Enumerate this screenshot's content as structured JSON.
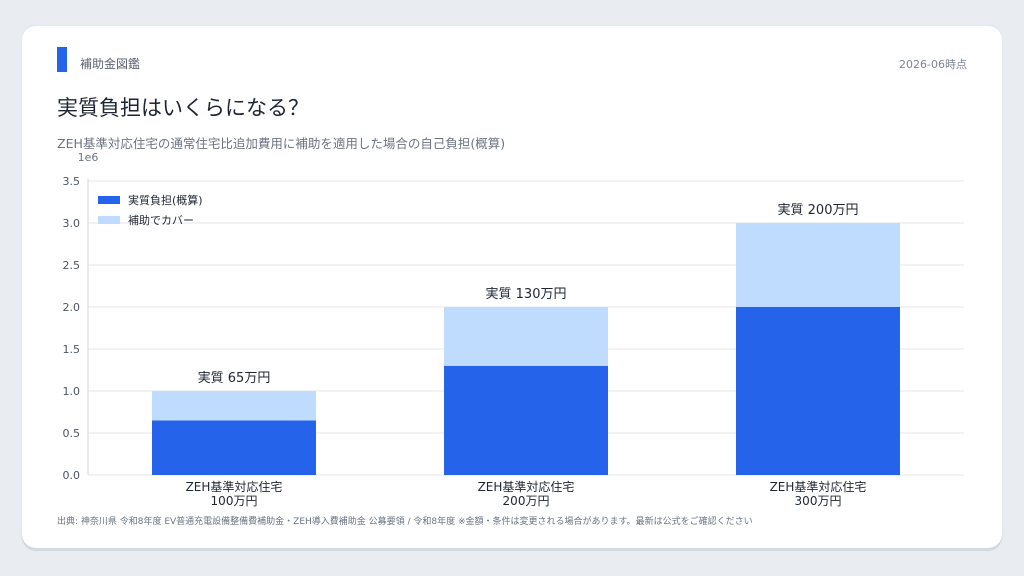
{
  "header": {
    "category": "補助金図鑑",
    "date": "2026-06時点",
    "title": "実質負担はいくらになる？",
    "subtitle": "ZEH基準対応住宅の通常住宅比追加費用に補助を適用した場合の自己負担(概算)"
  },
  "footer": {
    "source": "出典: 神奈川県 令和8年度 EV普通充電設備整備費補助金・ZEH導入費補助金 公募要領 / 令和8年度 ※金額・条件は変更される場合があります。最新は公式をご確認ください"
  },
  "chart_data": {
    "type": "bar",
    "stacked": true,
    "categories": [
      "ZEH基準対応住宅\n100万円",
      "ZEH基準対応住宅\n200万円",
      "ZEH基準対応住宅\n300万円"
    ],
    "series": [
      {
        "name": "実質負担(概算)",
        "values": [
          650000,
          1300000,
          2000000
        ],
        "color": "#2563eb"
      },
      {
        "name": "補助でカバー",
        "values": [
          350000,
          700000,
          1000000
        ],
        "color": "#bfdbfe"
      }
    ],
    "bar_labels": [
      "実質 65万円",
      "実質 130万円",
      "実質 200万円"
    ],
    "y_ticks": [
      0,
      0.5,
      1.0,
      1.5,
      2.0,
      2.5,
      3.0,
      3.5
    ],
    "y_tick_labels": [
      "0.0",
      "0.5",
      "1.0",
      "1.5",
      "2.0",
      "2.5",
      "3.0",
      "3.5"
    ],
    "y_multiplier_label": "1e6",
    "ylim": [
      0,
      3500000
    ],
    "grid": true,
    "legend_position": "top-left"
  }
}
